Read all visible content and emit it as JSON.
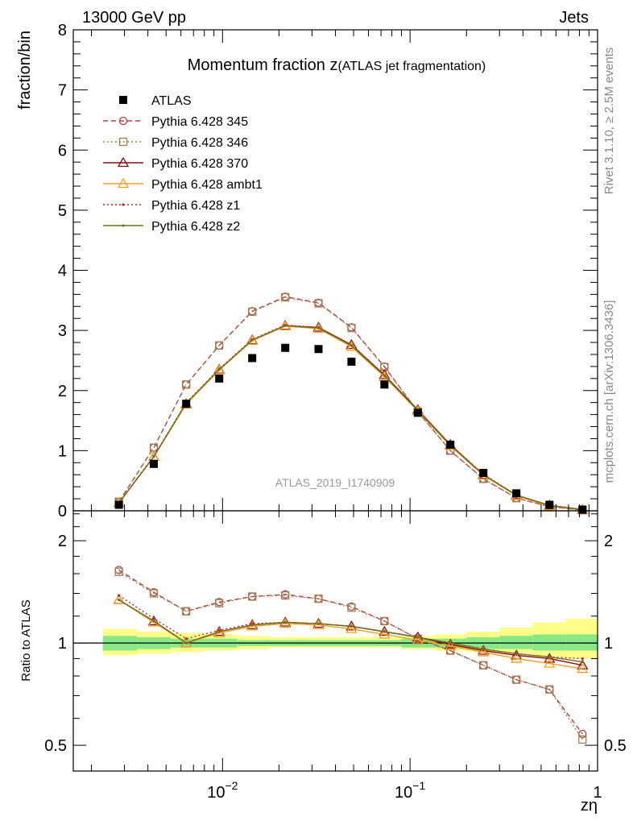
{
  "header": {
    "energy_label": "13000 GeV pp",
    "process_label": "Jets",
    "plot_title": "Momentum fraction z",
    "plot_subtitle": "(ATLAS jet fragmentation)",
    "analysis_id": "ATLAS_2019_I1740909",
    "side_label_top": "Rivet 3.1.10, ≥ 2.5M events",
    "side_label_bottom": "mcplots.cern.ch [arXiv:1306.3436]"
  },
  "chart_data": [
    {
      "type": "line",
      "ylabel": "fraction/bin",
      "xlabel": "zη",
      "xscale": "log",
      "xlim": [
        0.0016,
        1.0
      ],
      "ylim": [
        0,
        8
      ],
      "yticks": [
        "0",
        "1",
        "2",
        "3",
        "4",
        "5",
        "6",
        "7",
        "8"
      ],
      "xticks": [
        {
          "base": "10",
          "exp": "−2"
        },
        {
          "base": "10",
          "exp": "−1"
        },
        {
          "base": "1",
          "exp": ""
        }
      ],
      "x": [
        0.0028,
        0.0043,
        0.0064,
        0.0096,
        0.0144,
        0.0216,
        0.0325,
        0.0487,
        0.073,
        0.11,
        0.164,
        0.246,
        0.369,
        0.554,
        0.831
      ],
      "data": {
        "name": "ATLAS",
        "values": [
          0.1,
          0.78,
          1.78,
          2.2,
          2.54,
          2.71,
          2.69,
          2.48,
          2.1,
          1.63,
          1.1,
          0.63,
          0.29,
          0.1,
          0.02
        ]
      },
      "series": [
        {
          "name": "Pythia 6.428 345",
          "color": "#b04040",
          "dash": "dashed",
          "marker": "circle",
          "values": [
            0.15,
            1.05,
            2.1,
            2.75,
            3.32,
            3.56,
            3.46,
            3.05,
            2.4,
            1.65,
            1.0,
            0.53,
            0.21,
            0.07,
            0.01
          ]
        },
        {
          "name": "Pythia 6.428 346",
          "color": "#a08050",
          "dash": "dotted",
          "marker": "square",
          "values": [
            0.15,
            1.05,
            2.1,
            2.75,
            3.31,
            3.55,
            3.45,
            3.04,
            2.39,
            1.65,
            1.0,
            0.53,
            0.21,
            0.07,
            0.01
          ]
        },
        {
          "name": "Pythia 6.428 370",
          "color": "#8b0a1a",
          "dash": "solid",
          "marker": "triangle",
          "values": [
            0.13,
            0.9,
            1.78,
            2.35,
            2.84,
            3.08,
            3.05,
            2.76,
            2.26,
            1.68,
            1.1,
            0.6,
            0.26,
            0.09,
            0.02
          ]
        },
        {
          "name": "Pythia 6.428 ambt1",
          "color": "#f0a020",
          "dash": "solid",
          "marker": "triangle",
          "values": [
            0.13,
            0.9,
            1.77,
            2.34,
            2.83,
            3.07,
            3.03,
            2.73,
            2.23,
            1.66,
            1.08,
            0.59,
            0.25,
            0.08,
            0.02
          ]
        },
        {
          "name": "Pythia 6.428 z1",
          "color": "#d02020",
          "dash": "dotted",
          "marker": "dot",
          "values": [
            0.14,
            0.91,
            1.8,
            2.36,
            2.85,
            3.09,
            3.05,
            2.75,
            2.25,
            1.67,
            1.1,
            0.61,
            0.26,
            0.09,
            0.02
          ]
        },
        {
          "name": "Pythia 6.428 z2",
          "color": "#707020",
          "dash": "solid",
          "marker": "dot",
          "values": [
            0.13,
            0.9,
            1.79,
            2.35,
            2.84,
            3.08,
            3.04,
            2.75,
            2.25,
            1.67,
            1.09,
            0.6,
            0.26,
            0.09,
            0.02
          ]
        }
      ]
    },
    {
      "type": "line",
      "ylabel": "Ratio to ATLAS",
      "xscale": "log",
      "yscale": "log",
      "xlim": [
        0.0016,
        1.0
      ],
      "ylim": [
        0.42,
        2.45
      ],
      "yticks_left": [
        "0.5",
        "1",
        "2"
      ],
      "yticks_right": [
        "0.5",
        "1",
        "2"
      ],
      "reference": 1.0,
      "bands": {
        "edges": [
          0.0023,
          0.0035,
          0.0053,
          0.0079,
          0.012,
          0.0178,
          0.0267,
          0.04,
          0.06,
          0.09,
          0.135,
          0.2,
          0.3,
          0.45,
          0.675,
          1.0
        ],
        "inner_lo": [
          0.95,
          0.96,
          0.97,
          0.97,
          0.98,
          0.98,
          0.98,
          0.98,
          0.98,
          0.97,
          0.97,
          0.96,
          0.96,
          0.95,
          0.95
        ],
        "inner_hi": [
          1.05,
          1.04,
          1.03,
          1.03,
          1.02,
          1.02,
          1.02,
          1.02,
          1.02,
          1.03,
          1.03,
          1.04,
          1.05,
          1.06,
          1.06
        ],
        "outer_lo": [
          0.92,
          0.93,
          0.94,
          0.95,
          0.96,
          0.97,
          0.97,
          0.97,
          0.97,
          0.96,
          0.95,
          0.94,
          0.93,
          0.91,
          0.9
        ],
        "outer_hi": [
          1.1,
          1.08,
          1.07,
          1.06,
          1.05,
          1.04,
          1.04,
          1.04,
          1.04,
          1.05,
          1.06,
          1.08,
          1.11,
          1.15,
          1.18
        ]
      },
      "series": [
        {
          "name": "Pythia 6.428 345",
          "values": [
            1.64,
            1.41,
            1.24,
            1.32,
            1.37,
            1.39,
            1.35,
            1.28,
            1.16,
            1.03,
            0.95,
            0.86,
            0.78,
            0.73,
            0.54
          ]
        },
        {
          "name": "Pythia 6.428 346",
          "values": [
            1.62,
            1.4,
            1.24,
            1.31,
            1.37,
            1.38,
            1.35,
            1.27,
            1.16,
            1.03,
            0.95,
            0.86,
            0.78,
            0.73,
            0.52
          ]
        },
        {
          "name": "Pythia 6.428 370",
          "values": [
            1.34,
            1.16,
            1.0,
            1.08,
            1.13,
            1.15,
            1.14,
            1.12,
            1.08,
            1.04,
            0.99,
            0.95,
            0.92,
            0.9,
            0.86
          ]
        },
        {
          "name": "Pythia 6.428 ambt1",
          "values": [
            1.34,
            1.15,
            1.0,
            1.07,
            1.12,
            1.14,
            1.13,
            1.1,
            1.06,
            1.02,
            0.98,
            0.94,
            0.9,
            0.87,
            0.84
          ]
        },
        {
          "name": "Pythia 6.428 z1",
          "values": [
            1.38,
            1.18,
            1.03,
            1.09,
            1.14,
            1.15,
            1.14,
            1.12,
            1.08,
            1.04,
            1.0,
            0.96,
            0.93,
            0.91,
            0.9
          ]
        },
        {
          "name": "Pythia 6.428 z2",
          "values": [
            1.34,
            1.16,
            1.0,
            1.08,
            1.13,
            1.15,
            1.14,
            1.12,
            1.08,
            1.04,
            1.0,
            0.96,
            0.93,
            0.91,
            0.88
          ]
        }
      ]
    }
  ]
}
